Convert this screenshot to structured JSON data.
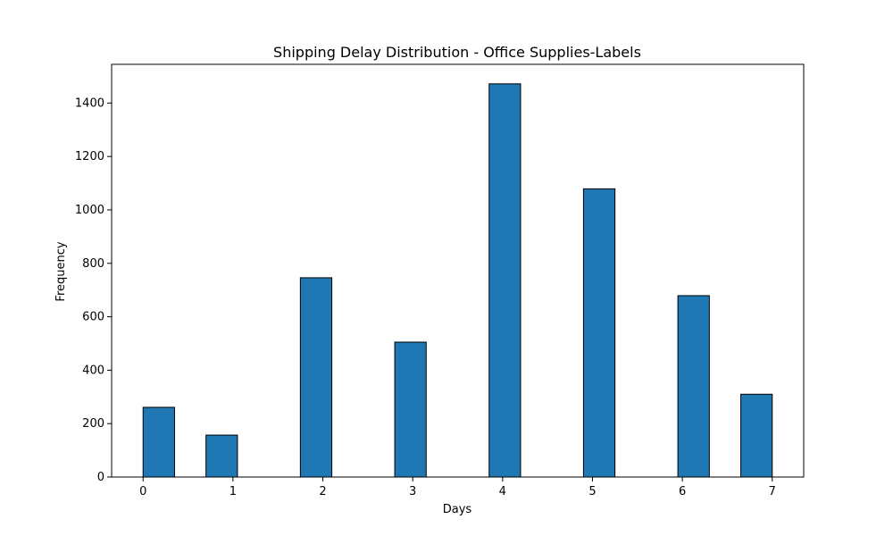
{
  "chart_data": {
    "type": "bar",
    "title": "Shipping Delay Distribution - Office Supplies-Labels",
    "xlabel": "Days",
    "ylabel": "Frequency",
    "bins": [
      {
        "start": 0.0,
        "end": 0.35,
        "value": 261
      },
      {
        "start": 0.7,
        "end": 1.05,
        "value": 157
      },
      {
        "start": 1.75,
        "end": 2.1,
        "value": 746
      },
      {
        "start": 2.8,
        "end": 3.15,
        "value": 505
      },
      {
        "start": 3.85,
        "end": 4.2,
        "value": 1472
      },
      {
        "start": 4.9,
        "end": 5.25,
        "value": 1079
      },
      {
        "start": 5.95,
        "end": 6.3,
        "value": 679
      },
      {
        "start": 6.65,
        "end": 7.0,
        "value": 310
      }
    ],
    "xticks": [
      0,
      1,
      2,
      3,
      4,
      5,
      6,
      7
    ],
    "yticks": [
      0,
      200,
      400,
      600,
      800,
      1000,
      1200,
      1400
    ],
    "xlim": [
      -0.35,
      7.35
    ],
    "ylim": [
      0,
      1545
    ],
    "grid": false,
    "bar_color": "#1f77b4",
    "edge_color": "#000000"
  }
}
